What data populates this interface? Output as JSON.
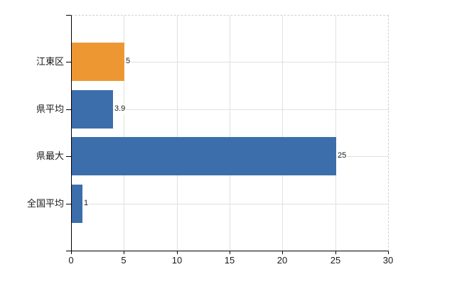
{
  "chart_data": {
    "type": "bar",
    "orientation": "horizontal",
    "title": "",
    "categories": [
      "江東区",
      "県平均",
      "県最大",
      "全国平均"
    ],
    "values": [
      5,
      3.9,
      25,
      1
    ],
    "value_labels": [
      "5",
      "3.9",
      "25",
      "1"
    ],
    "bar_colors": [
      "#ED9733",
      "#3C6EAC",
      "#3C6EAC",
      "#3C6EAC"
    ],
    "xlabel": "",
    "ylabel": "",
    "xlim": [
      0,
      30
    ],
    "x_ticks": [
      0,
      5,
      10,
      15,
      20,
      25,
      30
    ],
    "x_tick_labels": [
      "0",
      "5",
      "10",
      "15",
      "20",
      "25",
      "30"
    ],
    "grid": true,
    "legend": false
  },
  "colors": {
    "highlight_bar": "#ED9733",
    "default_bar": "#3C6EAC",
    "gridline": "#DCE3DC",
    "dashed_border": "#D0D0D0",
    "axis": "#000000",
    "text": "#1A1A1A",
    "background": "#FFFFFF"
  }
}
